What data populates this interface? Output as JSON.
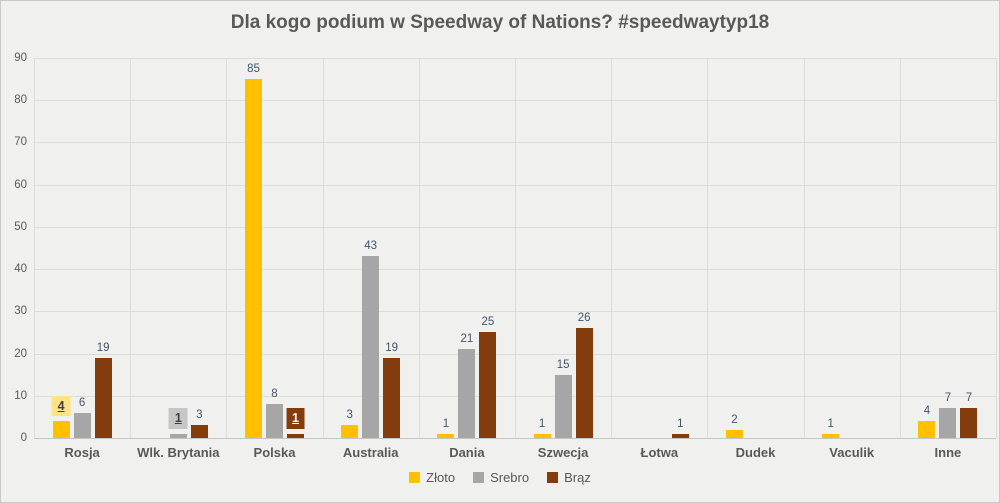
{
  "title": "Dla kogo podium w Speedway of Nations? #speedwaytyp18",
  "colors": {
    "background": "#f0f0ef",
    "frame_border": "#c9c9c9",
    "gridline": "#dcdcdb",
    "title_text": "#595959",
    "axis_text": "#595959",
    "data_label_text": "#44546a",
    "gold": "#FFC000",
    "silver": "#A6A6A6",
    "bronze": "#843C0C"
  },
  "chart_data": {
    "type": "bar",
    "title": "Dla kogo podium w Speedway of Nations? #speedwaytyp18",
    "categories": [
      "Rosja",
      "Wlk. Brytania",
      "Polska",
      "Australia",
      "Dania",
      "Szwecja",
      "Łotwa",
      "Dudek",
      "Vaculik",
      "Inne"
    ],
    "series": [
      {
        "name": "Złoto",
        "color": "#FFC000",
        "values": [
          4,
          0,
          85,
          3,
          1,
          1,
          0,
          2,
          1,
          4
        ]
      },
      {
        "name": "Srebro",
        "color": "#A6A6A6",
        "values": [
          6,
          1,
          8,
          43,
          21,
          15,
          0,
          0,
          0,
          7
        ]
      },
      {
        "name": "Brąz",
        "color": "#843C0C",
        "values": [
          19,
          3,
          1,
          19,
          25,
          26,
          1,
          0,
          0,
          7
        ]
      }
    ],
    "xlabel": "",
    "ylabel": "",
    "ylim": [
      0,
      90
    ],
    "ytick_step": 10,
    "ytick_labels": [
      "0",
      "10",
      "20",
      "30",
      "40",
      "50",
      "60",
      "70",
      "80",
      "90"
    ],
    "grid": "horizontal gridlines at every 10 plus vertical category separator gridlines",
    "legend_position": "bottom-center",
    "data_labels": "value shown above every nonzero bar",
    "highlighted_labels": [
      {
        "category": "Rosja",
        "series": "Złoto",
        "value": 4,
        "box_color": "#FFE385",
        "text_color": "#404040"
      },
      {
        "category": "Wlk. Brytania",
        "series": "Srebro",
        "value": 1,
        "box_color": "#C6C6C6",
        "text_color": "#404040"
      },
      {
        "category": "Polska",
        "series": "Brąz",
        "value": 1,
        "box_color": "#843C0C",
        "text_color": "#FFFFFF"
      }
    ]
  }
}
